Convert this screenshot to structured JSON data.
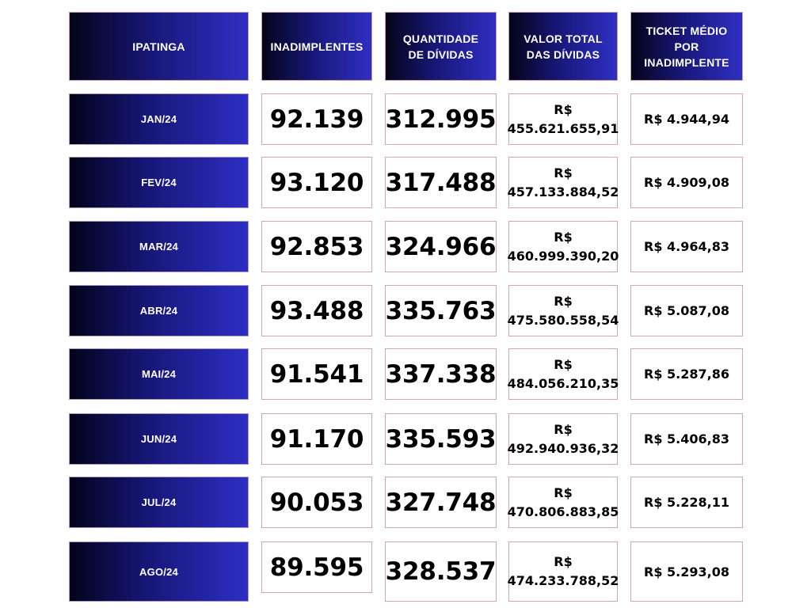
{
  "header": {
    "city": "IPATINGA",
    "col_inadimplentes": "INADIMPLENTES",
    "col_quantidade_line1": "QUANTIDADE",
    "col_quantidade_line2": "DE DÍVIDAS",
    "col_valor_line1": "VALOR TOTAL",
    "col_valor_line2": "DAS DÍVIDAS",
    "col_ticket_line1": "TICKET MÉDIO",
    "col_ticket_line2": "POR",
    "col_ticket_line3": "INADIMPLENTE"
  },
  "currency_prefix": "R$",
  "rows": [
    {
      "month": "JAN/24",
      "inadimplentes": "92.139",
      "quantidade": "312.995",
      "valor": "455.621.655,91",
      "ticket": "R$ 4.944,94"
    },
    {
      "month": "FEV/24",
      "inadimplentes": "93.120",
      "quantidade": "317.488",
      "valor": "457.133.884,52",
      "ticket": "R$ 4.909,08"
    },
    {
      "month": "MAR/24",
      "inadimplentes": "92.853",
      "quantidade": "324.966",
      "valor": "460.999.390,20",
      "ticket": "R$ 4.964,83"
    },
    {
      "month": "ABR/24",
      "inadimplentes": "93.488",
      "quantidade": "335.763",
      "valor": "475.580.558,54",
      "ticket": "R$ 5.087,08"
    },
    {
      "month": "MAI/24",
      "inadimplentes": "91.541",
      "quantidade": "337.338",
      "valor": "484.056.210,35",
      "ticket": "R$ 5.287,86"
    },
    {
      "month": "JUN/24",
      "inadimplentes": "91.170",
      "quantidade": "335.593",
      "valor": "492.940.936,32",
      "ticket": "R$ 5.406,83"
    },
    {
      "month": "JUL/24",
      "inadimplentes": "90.053",
      "quantidade": "327.748",
      "valor": "470.806.883,85",
      "ticket": "R$ 5.228,11"
    },
    {
      "month": "AGO/24",
      "inadimplentes": "89.595",
      "quantidade": "328.537",
      "valor": "474.233.788,52",
      "ticket": "R$ 5.293,08"
    }
  ]
}
